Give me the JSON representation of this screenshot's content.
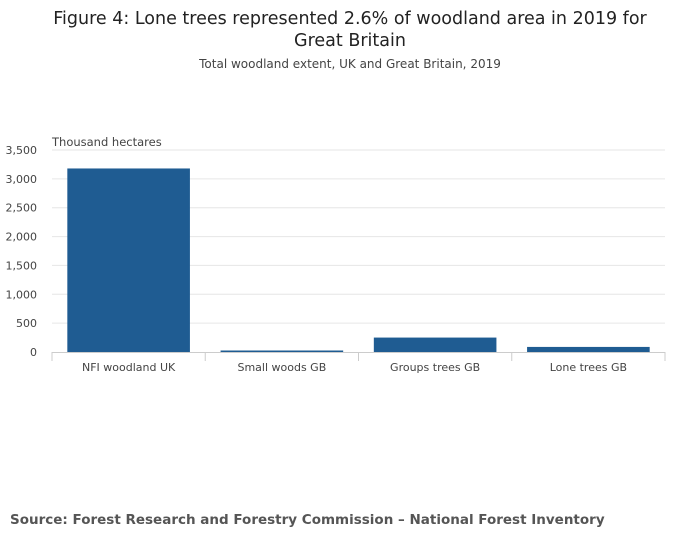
{
  "chart_data": {
    "type": "bar",
    "title": "Figure 4: Lone trees represented 2.6% of woodland area in 2019 for Great Britain",
    "subtitle": "Total woodland extent, UK and Great Britain, 2019",
    "ylabel": "Thousand hectares",
    "xlabel": "",
    "categories": [
      "NFI woodland UK",
      "Small woods GB",
      "Groups trees GB",
      "Lone trees GB"
    ],
    "values": [
      3180,
      14,
      250,
      88
    ],
    "ylim": [
      0,
      3500
    ],
    "yticks": [
      "0",
      "500",
      "1,000",
      "1,500",
      "2,000",
      "2,500",
      "3,000",
      "3,500"
    ],
    "grid": true,
    "bar_color": "#1f5c92"
  },
  "source": "Source: Forest Research and Forestry Commission – National Forest Inventory"
}
